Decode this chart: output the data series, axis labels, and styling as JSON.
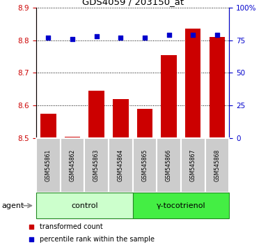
{
  "title": "GDS4059 / 203150_at",
  "samples": [
    "GSM545861",
    "GSM545862",
    "GSM545863",
    "GSM545864",
    "GSM545865",
    "GSM545866",
    "GSM545867",
    "GSM545868"
  ],
  "bar_values": [
    8.575,
    8.505,
    8.645,
    8.62,
    8.59,
    8.755,
    8.835,
    8.81
  ],
  "dot_values": [
    77,
    76,
    78,
    77,
    77,
    79,
    79,
    79
  ],
  "ylim_left": [
    8.5,
    8.9
  ],
  "ylim_right": [
    0,
    100
  ],
  "yticks_left": [
    8.5,
    8.6,
    8.7,
    8.8,
    8.9
  ],
  "yticks_right": [
    0,
    25,
    50,
    75,
    100
  ],
  "ytick_labels_right": [
    "0",
    "25",
    "50",
    "75",
    "100%"
  ],
  "bar_color": "#cc0000",
  "dot_color": "#0000cc",
  "bar_bottom": 8.5,
  "groups": [
    {
      "label": "control",
      "indices": [
        0,
        1,
        2,
        3
      ],
      "color": "#ccffcc"
    },
    {
      "label": "γ-tocotrienol",
      "indices": [
        4,
        5,
        6,
        7
      ],
      "color": "#44ee44"
    }
  ],
  "agent_label": "agent",
  "legend_items": [
    {
      "color": "#cc0000",
      "label": "transformed count"
    },
    {
      "color": "#0000cc",
      "label": "percentile rank within the sample"
    }
  ],
  "grid_color": "black",
  "tick_label_color_left": "#cc0000",
  "tick_label_color_right": "#0000cc",
  "background_color": "#ffffff",
  "sample_box_color": "#cccccc"
}
